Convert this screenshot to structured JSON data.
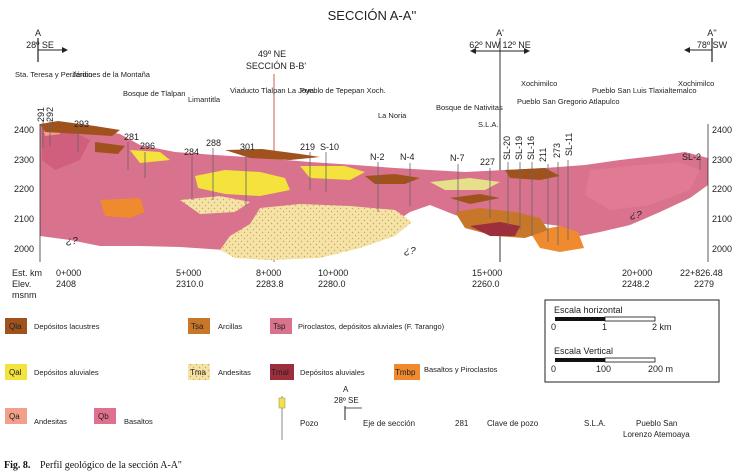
{
  "title": "SECCIÓN A-A''",
  "section_markers": [
    {
      "letter": "A",
      "dip": "28º SE"
    },
    {
      "letter": "A'",
      "dip": "62º NW 12º NE"
    },
    {
      "letter": "A''",
      "dip": "78º SW"
    }
  ],
  "cross_section_label": {
    "dip": "49º NE",
    "name": "SECCIÓN B-B'"
  },
  "place_names": [
    "Sta. Teresa y Periférico",
    "Jardines de la Montaña",
    "Bosque de Tlalpan",
    "Limantitla",
    "Viaducto Tlalpan La Joya",
    "Pueblo de Tepepan Xoch.",
    "La Noria",
    "Bosque de Nativitas",
    "S.L.A.",
    "Pueblo San Gregorio Atlapulco",
    "Xochimilco",
    "Pueblo San Luis Tlaxialtemalco",
    "Xochimilco"
  ],
  "wells": [
    "291",
    "292",
    "293",
    "281",
    "296",
    "284",
    "288",
    "301",
    "219",
    "S-10",
    "N-2",
    "N-4",
    "N-7",
    "227",
    "SL-20",
    "SL-19",
    "SL-16",
    "211",
    "273",
    "SL-11",
    "SL-2"
  ],
  "elevation_ticks": [
    "2400",
    "2300",
    "2200",
    "2100",
    "2000"
  ],
  "unknown_marks": [
    "¿?",
    "¿?",
    "¿?"
  ],
  "stations": {
    "est_label": "Est. km",
    "elev_label": "Elev.",
    "unit_label": "msnm",
    "items": [
      {
        "km": "0+000",
        "elev": "2408"
      },
      {
        "km": "5+000",
        "elev": "2310.0"
      },
      {
        "km": "8+000",
        "elev": "2283.8"
      },
      {
        "km": "10+000",
        "elev": "2280.0"
      },
      {
        "km": "15+000",
        "elev": "2260.0"
      },
      {
        "km": "20+000",
        "elev": "2248.2"
      },
      {
        "km": "22+826.48",
        "elev": "2279"
      }
    ]
  },
  "scales": {
    "horizontal": {
      "title": "Escala horizontal",
      "ticks": [
        "0",
        "1",
        "2 km"
      ]
    },
    "vertical": {
      "title": "Escala Vertical",
      "ticks": [
        "0",
        "100",
        "200 m"
      ]
    }
  },
  "legend": [
    {
      "code": "Qla",
      "label": "Depósitos lacustres",
      "color": "#a0521d"
    },
    {
      "code": "Tsa",
      "label": "Arcillas",
      "color": "#c8762a"
    },
    {
      "code": "Tsp",
      "label": "Piroclastos, depósitos aluviales (F. Tarango)",
      "color": "#d9728c"
    },
    {
      "code": "Qal",
      "label": "Depósitos aluviales",
      "color": "#f3e33c"
    },
    {
      "code": "Tma",
      "label": "Andesitas",
      "color": "#f5e2a6"
    },
    {
      "code": "Tmal",
      "label": "Depósitos aluviales",
      "color": "#9d2f3c"
    },
    {
      "code": "Tmbp",
      "label": "Basaltos y Piroclastos",
      "color": "#ef8a2e"
    },
    {
      "code": "Qa",
      "label": "Andesitas",
      "color": "#f2a08a"
    },
    {
      "code": "Qb",
      "label": "Basaltos",
      "color": "#e0718e"
    }
  ],
  "symbols": {
    "well_label": "Pozo",
    "axis_letter": "A",
    "axis_dip": "28º SE",
    "axis_label": "Eje de sección",
    "key_number": "281",
    "key_label": "Clave de pozo",
    "abbr": "S.L.A.",
    "abbr_meaning": "Pueblo San Lorenzo Atemoaya"
  },
  "caption": {
    "label": "Fig. 8.",
    "text": "Perfil geológico de la sección A-A''"
  }
}
